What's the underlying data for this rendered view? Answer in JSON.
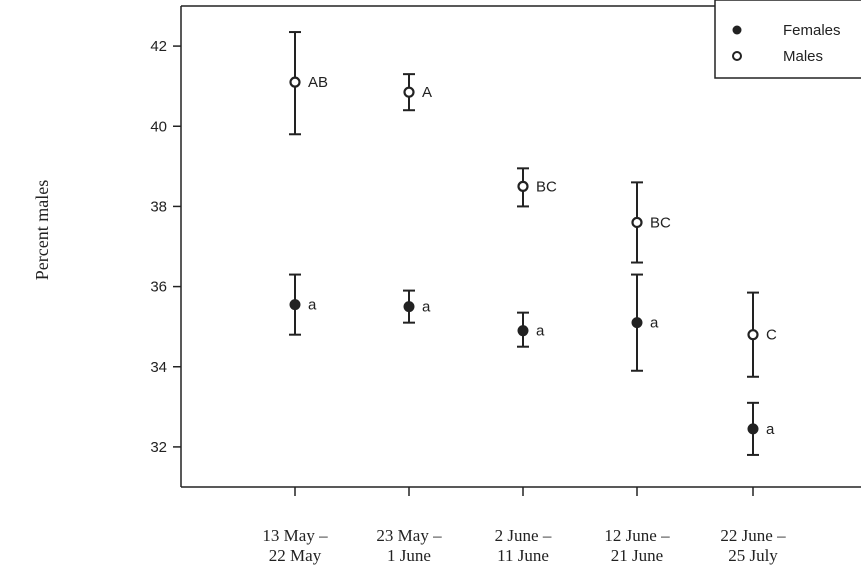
{
  "chart_data": {
    "type": "scatter",
    "title": "",
    "xlabel": "",
    "ylabel": "Percent males",
    "ylim": [
      31,
      43
    ],
    "yticks": [
      32,
      34,
      36,
      38,
      40,
      42
    ],
    "grid": false,
    "legend_position": "top-right",
    "categories": [
      [
        "13 May –",
        "22 May"
      ],
      [
        "23 May –",
        "1 June"
      ],
      [
        "2 June –",
        "11 June"
      ],
      [
        "12 June –",
        "21 June"
      ],
      [
        "22 June –",
        "25 July"
      ]
    ],
    "series": [
      {
        "name": "Females",
        "marker": "filled",
        "values": [
          35.55,
          35.5,
          34.9,
          35.1,
          32.45
        ],
        "err_low": [
          34.8,
          35.1,
          34.5,
          33.9,
          31.8
        ],
        "err_high": [
          36.3,
          35.9,
          35.35,
          36.3,
          33.1
        ],
        "labels": [
          "a",
          "a",
          "a",
          "a",
          "a"
        ]
      },
      {
        "name": "Males",
        "marker": "open",
        "values": [
          41.1,
          40.85,
          38.5,
          37.6,
          34.8
        ],
        "err_low": [
          39.8,
          40.4,
          38.0,
          36.6,
          33.75
        ],
        "err_high": [
          42.35,
          41.3,
          38.95,
          38.6,
          35.85
        ],
        "labels": [
          "AB",
          "A",
          "BC",
          "BC",
          "C"
        ]
      }
    ],
    "colors": {
      "axis": "#222222",
      "marker": "#222222",
      "open_fill": "#ffffff"
    }
  }
}
